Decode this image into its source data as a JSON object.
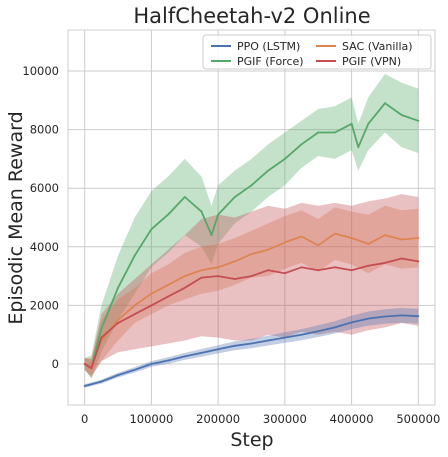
{
  "chart_data": {
    "type": "line",
    "title": "HalfCheetah-v2 Online",
    "xlabel": "Step",
    "ylabel": "Episodic Mean Reward",
    "xlim": [
      -25000,
      525000
    ],
    "ylim": [
      -1400,
      11400
    ],
    "xticks": [
      0,
      100000,
      200000,
      300000,
      400000,
      500000
    ],
    "xtick_labels": [
      "0",
      "100000",
      "200000",
      "300000",
      "400000",
      "500000"
    ],
    "yticks": [
      0,
      2000,
      4000,
      6000,
      8000,
      10000
    ],
    "ytick_labels": [
      "0",
      "2000",
      "4000",
      "6000",
      "8000",
      "10000"
    ],
    "grid": true,
    "legend_position": "top-right",
    "series": [
      {
        "name": "PPO (LSTM)",
        "color": "#4c72b0",
        "x": [
          0,
          25000,
          50000,
          75000,
          100000,
          125000,
          150000,
          175000,
          200000,
          225000,
          250000,
          275000,
          300000,
          325000,
          350000,
          375000,
          400000,
          425000,
          450000,
          475000,
          500000
        ],
        "values": [
          -750,
          -600,
          -380,
          -200,
          0,
          120,
          260,
          380,
          500,
          620,
          700,
          800,
          900,
          1000,
          1120,
          1250,
          1420,
          1550,
          1620,
          1660,
          1630
        ],
        "band": [
          60,
          70,
          80,
          90,
          100,
          110,
          120,
          130,
          140,
          150,
          160,
          170,
          180,
          190,
          200,
          210,
          230,
          240,
          250,
          250,
          250
        ]
      },
      {
        "name": "SAC (Vanilla)",
        "color": "#dd8452",
        "x": [
          0,
          10000,
          25000,
          50000,
          75000,
          100000,
          125000,
          150000,
          175000,
          200000,
          225000,
          250000,
          275000,
          300000,
          325000,
          350000,
          375000,
          400000,
          425000,
          450000,
          475000,
          500000
        ],
        "values": [
          0,
          -100,
          800,
          1500,
          2000,
          2400,
          2700,
          3000,
          3200,
          3300,
          3500,
          3750,
          3900,
          4150,
          4350,
          4050,
          4450,
          4300,
          4100,
          4400,
          4250,
          4300
        ],
        "band": [
          200,
          300,
          700,
          700,
          600,
          700,
          700,
          800,
          800,
          800,
          800,
          800,
          900,
          900,
          900,
          900,
          900,
          900,
          1000,
          1000,
          1000,
          1000
        ]
      },
      {
        "name": "PGIF (Force)",
        "color": "#55a868",
        "x": [
          0,
          10000,
          25000,
          50000,
          75000,
          100000,
          125000,
          150000,
          175000,
          190000,
          200000,
          225000,
          250000,
          275000,
          300000,
          325000,
          350000,
          375000,
          400000,
          410000,
          425000,
          450000,
          475000,
          500000
        ],
        "values": [
          0,
          -100,
          1200,
          2600,
          3700,
          4600,
          5100,
          5700,
          5200,
          4400,
          5100,
          5700,
          6100,
          6600,
          7000,
          7500,
          7900,
          7900,
          8200,
          7400,
          8200,
          8900,
          8500,
          8300
        ],
        "band": [
          200,
          400,
          800,
          1100,
          1300,
          1300,
          1300,
          1300,
          1200,
          1000,
          1000,
          900,
          900,
          900,
          900,
          800,
          800,
          900,
          900,
          800,
          900,
          1000,
          1100,
          1100
        ]
      },
      {
        "name": "PGIF (VPN)",
        "color": "#c44e52",
        "x": [
          0,
          10000,
          25000,
          50000,
          75000,
          100000,
          125000,
          150000,
          175000,
          200000,
          225000,
          250000,
          275000,
          300000,
          325000,
          350000,
          375000,
          400000,
          425000,
          450000,
          475000,
          500000
        ],
        "values": [
          0,
          -150,
          900,
          1400,
          1700,
          2000,
          2300,
          2600,
          2950,
          3000,
          2900,
          3000,
          3200,
          3100,
          3300,
          3200,
          3300,
          3200,
          3350,
          3450,
          3600,
          3500
        ],
        "band": [
          200,
          300,
          800,
          1000,
          1200,
          1400,
          1600,
          1800,
          2000,
          2100,
          2100,
          2200,
          2200,
          2200,
          2200,
          2200,
          2200,
          2200,
          2200,
          2200,
          2200,
          2200
        ]
      }
    ]
  }
}
